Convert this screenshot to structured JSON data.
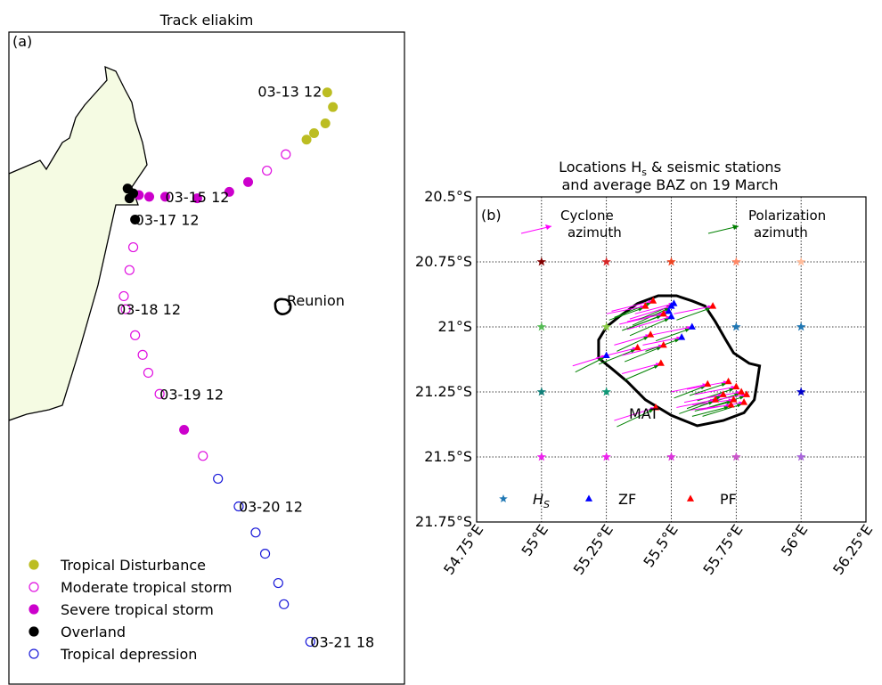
{
  "chart_data": [
    {
      "type": "scatter",
      "panel": "(a)",
      "title": "Track eliakim",
      "landmass_label": "",
      "place_label": "Reunion",
      "colors": {
        "tropical_disturbance": "#bcbd22",
        "moderate_tropical_storm": "#e010e0",
        "severe_tropical_storm": "#cc00cc",
        "overland": "#000000",
        "tropical_depression": "#1a1ad9",
        "land_fill": "#f5fbe3"
      },
      "legend_position": "lower-left",
      "legend": [
        {
          "key": "tropical_disturbance",
          "label": "Tropical Disturbance",
          "marker": "filled"
        },
        {
          "key": "moderate_tropical_storm",
          "label": "Moderate tropical storm",
          "marker": "open"
        },
        {
          "key": "severe_tropical_storm",
          "label": "Severe tropical storm",
          "marker": "filled"
        },
        {
          "key": "overland",
          "label": "Overland",
          "marker": "filled"
        },
        {
          "key": "tropical_depression",
          "label": "Tropical depression",
          "marker": "open"
        }
      ],
      "xlim": [
        40.0,
        61.0
      ],
      "ylim": [
        -29.0,
        -9.0
      ],
      "track_points": [
        {
          "lon": 56.9,
          "lat": -10.85,
          "cat": "tropical_disturbance"
        },
        {
          "lon": 57.2,
          "lat": -11.3,
          "cat": "tropical_disturbance"
        },
        {
          "lon": 56.8,
          "lat": -11.8,
          "cat": "tropical_disturbance"
        },
        {
          "lon": 56.2,
          "lat": -12.1,
          "cat": "tropical_disturbance"
        },
        {
          "lon": 55.8,
          "lat": -12.3,
          "cat": "tropical_disturbance"
        },
        {
          "lon": 54.7,
          "lat": -12.75,
          "cat": "moderate_tropical_storm"
        },
        {
          "lon": 53.7,
          "lat": -13.25,
          "cat": "moderate_tropical_storm"
        },
        {
          "lon": 52.7,
          "lat": -13.6,
          "cat": "severe_tropical_storm"
        },
        {
          "lon": 51.7,
          "lat": -13.9,
          "cat": "severe_tropical_storm"
        },
        {
          "lon": 50.0,
          "lat": -14.1,
          "cat": "severe_tropical_storm"
        },
        {
          "lon": 48.3,
          "lat": -14.05,
          "cat": "severe_tropical_storm"
        },
        {
          "lon": 47.45,
          "lat": -14.05,
          "cat": "severe_tropical_storm"
        },
        {
          "lon": 46.9,
          "lat": -14.0,
          "cat": "severe_tropical_storm"
        },
        {
          "lon": 46.6,
          "lat": -13.95,
          "cat": "overland"
        },
        {
          "lon": 46.3,
          "lat": -13.8,
          "cat": "overland"
        },
        {
          "lon": 46.4,
          "lat": -14.1,
          "cat": "overland"
        },
        {
          "lon": 46.7,
          "lat": -14.75,
          "cat": "overland"
        },
        {
          "lon": 46.6,
          "lat": -15.6,
          "cat": "moderate_tropical_storm"
        },
        {
          "lon": 46.4,
          "lat": -16.3,
          "cat": "moderate_tropical_storm"
        },
        {
          "lon": 46.1,
          "lat": -17.1,
          "cat": "moderate_tropical_storm"
        },
        {
          "lon": 46.2,
          "lat": -17.5,
          "cat": "moderate_tropical_storm"
        },
        {
          "lon": 46.7,
          "lat": -18.3,
          "cat": "moderate_tropical_storm"
        },
        {
          "lon": 47.1,
          "lat": -18.9,
          "cat": "moderate_tropical_storm"
        },
        {
          "lon": 47.4,
          "lat": -19.45,
          "cat": "moderate_tropical_storm"
        },
        {
          "lon": 48.0,
          "lat": -20.1,
          "cat": "moderate_tropical_storm"
        },
        {
          "lon": 49.3,
          "lat": -21.2,
          "cat": "severe_tropical_storm"
        },
        {
          "lon": 50.3,
          "lat": -22.0,
          "cat": "moderate_tropical_storm"
        },
        {
          "lon": 51.1,
          "lat": -22.7,
          "cat": "tropical_depression"
        },
        {
          "lon": 52.2,
          "lat": -23.55,
          "cat": "tropical_depression"
        },
        {
          "lon": 53.1,
          "lat": -24.35,
          "cat": "tropical_depression"
        },
        {
          "lon": 53.6,
          "lat": -25.0,
          "cat": "tropical_depression"
        },
        {
          "lon": 54.3,
          "lat": -25.9,
          "cat": "tropical_depression"
        },
        {
          "lon": 54.6,
          "lat": -26.55,
          "cat": "tropical_depression"
        },
        {
          "lon": 56.0,
          "lat": -27.7,
          "cat": "tropical_depression"
        }
      ],
      "annotations": [
        {
          "text": "03-13 12",
          "lon": 56.9,
          "lat": -10.85
        },
        {
          "text": "03-15 12",
          "lon": 48.3,
          "lat": -14.05
        },
        {
          "text": "03-17 12",
          "lon": 46.7,
          "lat": -14.75
        },
        {
          "text": "03-18 12",
          "lon": 46.2,
          "lat": -17.5
        },
        {
          "text": "03-19 12",
          "lon": 48.0,
          "lat": -20.1
        },
        {
          "text": "03-20 12",
          "lon": 52.2,
          "lat": -23.55
        },
        {
          "text": "03-21 18",
          "lon": 56.0,
          "lat": -27.7
        }
      ],
      "reunion_center": {
        "lon": 55.5,
        "lat": -21.1
      }
    },
    {
      "type": "scatter",
      "panel": "(b)",
      "title_line1": "Locations H",
      "title_sub": "s",
      "title_rest1": " & seismic stations",
      "title_line2": "and average BAZ on 19 March",
      "xlim": [
        54.75,
        56.25
      ],
      "ylim": [
        -21.75,
        -20.5
      ],
      "xtick_values": [
        54.75,
        55,
        55.25,
        55.5,
        55.75,
        56,
        56.25
      ],
      "xtick_labels": [
        "54.75°E",
        "55°E",
        "55.25°E",
        "55.5°E",
        "55.75°E",
        "56°E",
        "56.25°E"
      ],
      "ytick_values": [
        -20.5,
        -20.75,
        -21,
        -21.25,
        -21.5,
        -21.75
      ],
      "ytick_labels": [
        "20.5°S",
        "20.75°S",
        "21°S",
        "21.25°S",
        "21.5°S",
        "21.75°S"
      ],
      "grid": true,
      "station_label": "MAT",
      "arrow_legend": [
        {
          "label_line1": "Cyclone",
          "label_line2": "azimuth",
          "color": "#ff00ff"
        },
        {
          "label_line1": "Polarization",
          "label_line2": "azimuth",
          "color": "#008000"
        }
      ],
      "marker_legend": [
        {
          "label": "H",
          "sub": "S",
          "marker": "star",
          "color": "#1f77b4"
        },
        {
          "label": "ZF",
          "marker": "triangle",
          "color": "#0000ff"
        },
        {
          "label": "PF",
          "marker": "triangle",
          "color": "#ff0000"
        }
      ],
      "hs_points": [
        {
          "lon": 55.0,
          "lat": -20.75,
          "color": "#800000"
        },
        {
          "lon": 55.25,
          "lat": -20.75,
          "color": "#d62728"
        },
        {
          "lon": 55.5,
          "lat": -20.75,
          "color": "#ee4422"
        },
        {
          "lon": 55.75,
          "lat": -20.75,
          "color": "#ff8866"
        },
        {
          "lon": 56.0,
          "lat": -20.75,
          "color": "#ffbb99"
        },
        {
          "lon": 55.0,
          "lat": -21.0,
          "color": "#55bb55"
        },
        {
          "lon": 55.25,
          "lat": -21.0,
          "color": "#88cc44"
        },
        {
          "lon": 55.75,
          "lat": -21.0,
          "color": "#1f77b4"
        },
        {
          "lon": 56.0,
          "lat": -21.0,
          "color": "#1f77b4"
        },
        {
          "lon": 55.0,
          "lat": -21.25,
          "color": "#11807a"
        },
        {
          "lon": 55.25,
          "lat": -21.25,
          "color": "#119977"
        },
        {
          "lon": 56.0,
          "lat": -21.25,
          "color": "#0000cc"
        },
        {
          "lon": 55.0,
          "lat": -21.5,
          "color": "#ee22ee"
        },
        {
          "lon": 55.25,
          "lat": -21.5,
          "color": "#ee22ee"
        },
        {
          "lon": 55.5,
          "lat": -21.5,
          "color": "#dd33dd"
        },
        {
          "lon": 55.75,
          "lat": -21.5,
          "color": "#cc55cc"
        },
        {
          "lon": 56.0,
          "lat": -21.5,
          "color": "#aa66dd"
        }
      ],
      "island_outline": [
        [
          55.22,
          -21.12
        ],
        [
          55.22,
          -21.05
        ],
        [
          55.25,
          -21.0
        ],
        [
          55.3,
          -20.96
        ],
        [
          55.37,
          -20.91
        ],
        [
          55.45,
          -20.88
        ],
        [
          55.52,
          -20.88
        ],
        [
          55.58,
          -20.9
        ],
        [
          55.63,
          -20.92
        ],
        [
          55.67,
          -20.98
        ],
        [
          55.71,
          -21.05
        ],
        [
          55.74,
          -21.1
        ],
        [
          55.8,
          -21.14
        ],
        [
          55.84,
          -21.15
        ],
        [
          55.83,
          -21.22
        ],
        [
          55.82,
          -21.28
        ],
        [
          55.78,
          -21.33
        ],
        [
          55.7,
          -21.36
        ],
        [
          55.6,
          -21.38
        ],
        [
          55.5,
          -21.34
        ],
        [
          55.4,
          -21.28
        ],
        [
          55.33,
          -21.21
        ],
        [
          55.27,
          -21.16
        ]
      ],
      "zf_stations": [
        {
          "lon": 55.49,
          "lat": -20.94,
          "dx": -0.16,
          "dy": -0.05
        },
        {
          "lon": 55.5,
          "lat": -20.96,
          "dx": -0.17,
          "dy": -0.06
        },
        {
          "lon": 55.51,
          "lat": -20.91,
          "dx": -0.15,
          "dy": -0.05
        },
        {
          "lon": 55.5,
          "lat": -20.92,
          "dx": -0.16,
          "dy": -0.06
        },
        {
          "lon": 55.54,
          "lat": -21.04,
          "dx": -0.15,
          "dy": -0.04
        },
        {
          "lon": 55.58,
          "lat": -21.0,
          "dx": -0.15,
          "dy": -0.04
        },
        {
          "lon": 55.25,
          "lat": -21.11,
          "dx": -0.13,
          "dy": -0.05
        }
      ],
      "pf_stations": [
        {
          "lon": 55.43,
          "lat": -20.9,
          "dx": -0.16,
          "dy": -0.05
        },
        {
          "lon": 55.47,
          "lat": -20.95,
          "dx": -0.17,
          "dy": -0.05
        },
        {
          "lon": 55.4,
          "lat": -20.92,
          "dx": -0.15,
          "dy": -0.04
        },
        {
          "lon": 55.42,
          "lat": -21.03,
          "dx": -0.14,
          "dy": -0.05
        },
        {
          "lon": 55.37,
          "lat": -21.08,
          "dx": -0.16,
          "dy": -0.05
        },
        {
          "lon": 55.47,
          "lat": -21.07,
          "dx": -0.16,
          "dy": -0.05
        },
        {
          "lon": 55.46,
          "lat": -21.14,
          "dx": -0.15,
          "dy": -0.05
        },
        {
          "lon": 55.66,
          "lat": -20.92,
          "dx": -0.15,
          "dy": -0.04
        },
        {
          "lon": 55.64,
          "lat": -21.22,
          "dx": -0.14,
          "dy": -0.04
        },
        {
          "lon": 55.72,
          "lat": -21.21,
          "dx": -0.16,
          "dy": -0.04
        },
        {
          "lon": 55.77,
          "lat": -21.25,
          "dx": -0.17,
          "dy": -0.04
        },
        {
          "lon": 55.75,
          "lat": -21.23,
          "dx": -0.16,
          "dy": -0.04
        },
        {
          "lon": 55.79,
          "lat": -21.26,
          "dx": -0.17,
          "dy": -0.04
        },
        {
          "lon": 55.74,
          "lat": -21.28,
          "dx": -0.16,
          "dy": -0.03
        },
        {
          "lon": 55.7,
          "lat": -21.26,
          "dx": -0.15,
          "dy": -0.04
        },
        {
          "lon": 55.78,
          "lat": -21.29,
          "dx": -0.17,
          "dy": -0.04
        },
        {
          "lon": 55.73,
          "lat": -21.3,
          "dx": -0.16,
          "dy": -0.03
        },
        {
          "lon": 55.67,
          "lat": -21.28,
          "dx": -0.15,
          "dy": -0.04
        },
        {
          "lon": 55.44,
          "lat": -21.31,
          "dx": -0.16,
          "dy": -0.06
        }
      ]
    }
  ]
}
